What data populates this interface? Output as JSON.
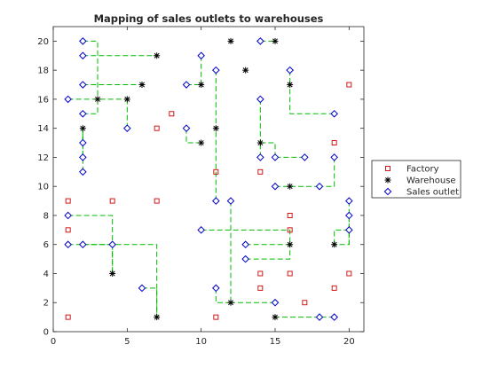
{
  "chart_data": {
    "type": "scatter",
    "title": "Mapping of sales outlets to warehouses",
    "xlabel": "",
    "ylabel": "",
    "xlim": [
      0,
      21
    ],
    "ylim": [
      0,
      21
    ],
    "xticks": [
      0,
      5,
      10,
      15,
      20
    ],
    "yticks": [
      0,
      2,
      4,
      6,
      8,
      10,
      12,
      14,
      16,
      18,
      20
    ],
    "grid": false,
    "legend_placement": "outside-right",
    "colors": {
      "factory": "#cc0000",
      "warehouse": "#000000",
      "outlet": "#0000cc",
      "route": "#00bb00"
    },
    "series": [
      {
        "name": "Factory",
        "marker": "square",
        "points": [
          [
            1,
            9
          ],
          [
            1,
            7
          ],
          [
            1,
            1
          ],
          [
            4,
            9
          ],
          [
            7,
            14
          ],
          [
            7,
            9
          ],
          [
            8,
            15
          ],
          [
            11,
            11
          ],
          [
            11,
            1
          ],
          [
            14,
            11
          ],
          [
            14,
            4
          ],
          [
            14,
            3
          ],
          [
            16,
            8
          ],
          [
            16,
            7
          ],
          [
            16,
            4
          ],
          [
            17,
            2
          ],
          [
            19,
            13
          ],
          [
            19,
            3
          ],
          [
            20,
            17
          ],
          [
            20,
            4
          ]
        ]
      },
      {
        "name": "Warehouse",
        "marker": "asterisk",
        "points": [
          [
            2,
            14
          ],
          [
            3,
            16
          ],
          [
            4,
            4
          ],
          [
            5,
            16
          ],
          [
            6,
            17
          ],
          [
            7,
            19
          ],
          [
            7,
            1
          ],
          [
            10,
            17
          ],
          [
            10,
            13
          ],
          [
            11,
            14
          ],
          [
            12,
            20
          ],
          [
            12,
            2
          ],
          [
            13,
            18
          ],
          [
            14,
            13
          ],
          [
            15,
            20
          ],
          [
            15,
            1
          ],
          [
            16,
            17
          ],
          [
            16,
            10
          ],
          [
            16,
            6
          ],
          [
            19,
            6
          ]
        ]
      },
      {
        "name": "Sales outlet",
        "marker": "diamond",
        "points": [
          [
            1,
            16
          ],
          [
            1,
            8
          ],
          [
            1,
            6
          ],
          [
            2,
            20
          ],
          [
            2,
            19
          ],
          [
            2,
            17
          ],
          [
            2,
            15
          ],
          [
            2,
            13
          ],
          [
            2,
            12
          ],
          [
            2,
            11
          ],
          [
            2,
            6
          ],
          [
            4,
            6
          ],
          [
            5,
            14
          ],
          [
            6,
            3
          ],
          [
            9,
            17
          ],
          [
            9,
            14
          ],
          [
            10,
            19
          ],
          [
            10,
            7
          ],
          [
            11,
            18
          ],
          [
            11,
            9
          ],
          [
            11,
            3
          ],
          [
            12,
            9
          ],
          [
            13,
            6
          ],
          [
            13,
            5
          ],
          [
            14,
            20
          ],
          [
            14,
            16
          ],
          [
            14,
            12
          ],
          [
            15,
            12
          ],
          [
            15,
            10
          ],
          [
            15,
            2
          ],
          [
            16,
            18
          ],
          [
            17,
            12
          ],
          [
            18,
            10
          ],
          [
            18,
            1
          ],
          [
            19,
            15
          ],
          [
            19,
            12
          ],
          [
            19,
            1
          ],
          [
            20,
            9
          ],
          [
            20,
            8
          ],
          [
            20,
            7
          ]
        ]
      }
    ],
    "routes": [
      [
        [
          2,
          20
        ],
        [
          3,
          20
        ],
        [
          3,
          16
        ]
      ],
      [
        [
          2,
          19
        ],
        [
          7,
          19
        ]
      ],
      [
        [
          2,
          17
        ],
        [
          6,
          17
        ]
      ],
      [
        [
          1,
          16
        ],
        [
          5,
          16
        ]
      ],
      [
        [
          2,
          15
        ],
        [
          3,
          15
        ],
        [
          3,
          16
        ]
      ],
      [
        [
          5,
          14
        ],
        [
          5,
          16
        ]
      ],
      [
        [
          2,
          13
        ],
        [
          2,
          14
        ]
      ],
      [
        [
          2,
          12
        ],
        [
          2,
          14
        ]
      ],
      [
        [
          2,
          11
        ],
        [
          2,
          14
        ]
      ],
      [
        [
          10,
          19
        ],
        [
          10,
          17
        ]
      ],
      [
        [
          9,
          17
        ],
        [
          10,
          17
        ]
      ],
      [
        [
          9,
          14
        ],
        [
          9,
          13
        ],
        [
          10,
          13
        ]
      ],
      [
        [
          11,
          18
        ],
        [
          11,
          14
        ]
      ],
      [
        [
          11,
          9
        ],
        [
          11,
          14
        ]
      ],
      [
        [
          1,
          8
        ],
        [
          4,
          8
        ],
        [
          4,
          4
        ]
      ],
      [
        [
          1,
          6
        ],
        [
          7,
          6
        ],
        [
          7,
          1
        ]
      ],
      [
        [
          2,
          6
        ],
        [
          4,
          6
        ]
      ],
      [
        [
          4,
          6
        ],
        [
          4,
          4
        ]
      ],
      [
        [
          6,
          3
        ],
        [
          7,
          3
        ],
        [
          7,
          1
        ]
      ],
      [
        [
          10,
          7
        ],
        [
          16,
          7
        ],
        [
          16,
          6
        ]
      ],
      [
        [
          12,
          9
        ],
        [
          12,
          2
        ]
      ],
      [
        [
          11,
          3
        ],
        [
          11,
          2
        ],
        [
          12,
          2
        ]
      ],
      [
        [
          13,
          6
        ],
        [
          16,
          6
        ]
      ],
      [
        [
          13,
          5
        ],
        [
          16,
          5
        ],
        [
          16,
          6
        ]
      ],
      [
        [
          14,
          20
        ],
        [
          15,
          20
        ]
      ],
      [
        [
          14,
          16
        ],
        [
          14,
          13
        ]
      ],
      [
        [
          14,
          12
        ],
        [
          14,
          13
        ]
      ],
      [
        [
          15,
          12
        ],
        [
          15,
          13
        ],
        [
          14,
          13
        ]
      ],
      [
        [
          17,
          12
        ],
        [
          15,
          12
        ]
      ],
      [
        [
          16,
          18
        ],
        [
          16,
          17
        ]
      ],
      [
        [
          19,
          15
        ],
        [
          16,
          15
        ],
        [
          16,
          17
        ]
      ],
      [
        [
          15,
          10
        ],
        [
          16,
          10
        ]
      ],
      [
        [
          18,
          10
        ],
        [
          16,
          10
        ]
      ],
      [
        [
          19,
          12
        ],
        [
          19,
          10
        ],
        [
          18,
          10
        ]
      ],
      [
        [
          20,
          9
        ],
        [
          20,
          6
        ],
        [
          19,
          6
        ]
      ],
      [
        [
          20,
          8
        ],
        [
          20,
          6
        ]
      ],
      [
        [
          20,
          7
        ],
        [
          19,
          7
        ],
        [
          19,
          6
        ]
      ],
      [
        [
          15,
          2
        ],
        [
          12,
          2
        ]
      ],
      [
        [
          18,
          1
        ],
        [
          15,
          1
        ]
      ],
      [
        [
          19,
          1
        ],
        [
          18,
          1
        ]
      ]
    ]
  }
}
